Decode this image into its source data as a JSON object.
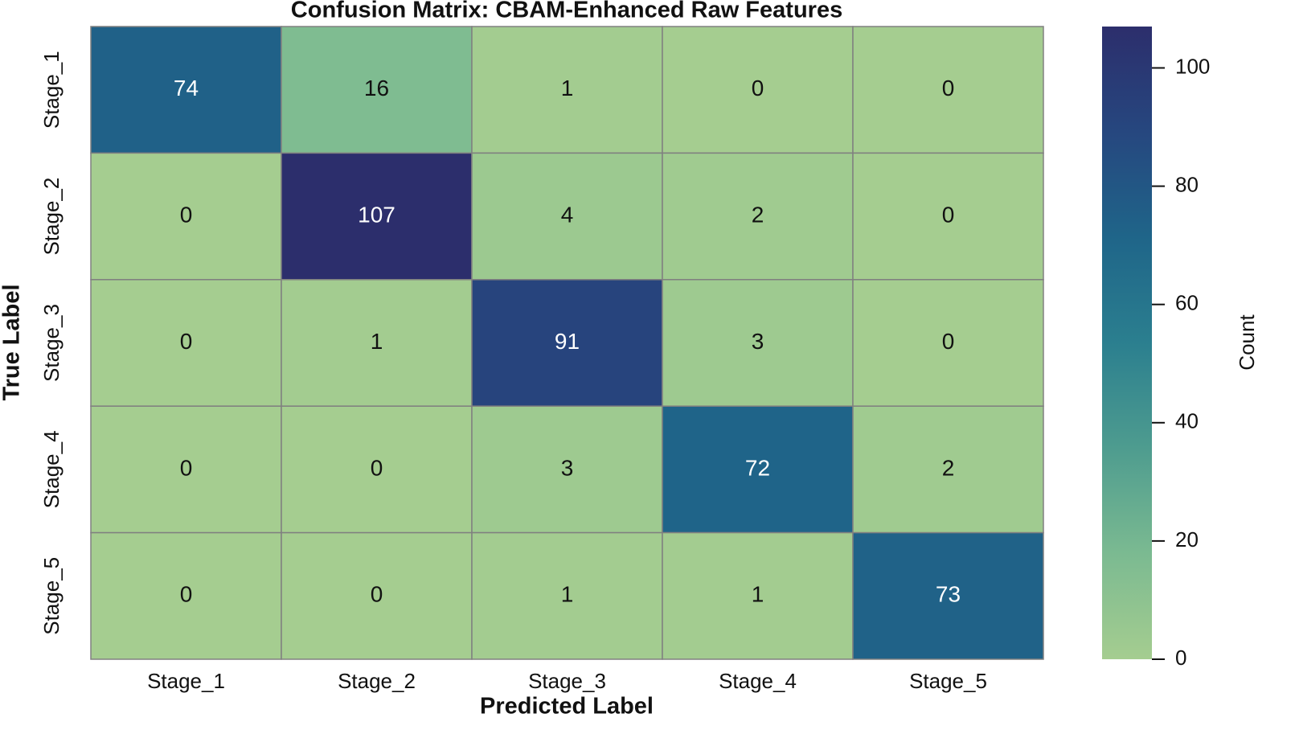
{
  "chart_data": {
    "type": "heatmap",
    "title": "Confusion Matrix: CBAM-Enhanced Raw Features",
    "xlabel": "Predicted Label",
    "ylabel": "True Label",
    "x_categories": [
      "Stage_1",
      "Stage_2",
      "Stage_3",
      "Stage_4",
      "Stage_5"
    ],
    "y_categories": [
      "Stage_1",
      "Stage_2",
      "Stage_3",
      "Stage_4",
      "Stage_5"
    ],
    "values": [
      [
        74,
        16,
        1,
        0,
        0
      ],
      [
        0,
        107,
        4,
        2,
        0
      ],
      [
        0,
        1,
        91,
        3,
        0
      ],
      [
        0,
        0,
        3,
        72,
        2
      ],
      [
        0,
        0,
        1,
        1,
        73
      ]
    ],
    "colorbar_label": "Count",
    "clim": [
      0,
      107
    ],
    "cticks": [
      0,
      20,
      40,
      60,
      80,
      100
    ],
    "colors": [
      "#a5cd90",
      "#7bba91",
      "#4e9c8f",
      "#2b7f8f",
      "#1f6589",
      "#26477f",
      "#2c2e6c"
    ],
    "grid_color": "#808080"
  }
}
